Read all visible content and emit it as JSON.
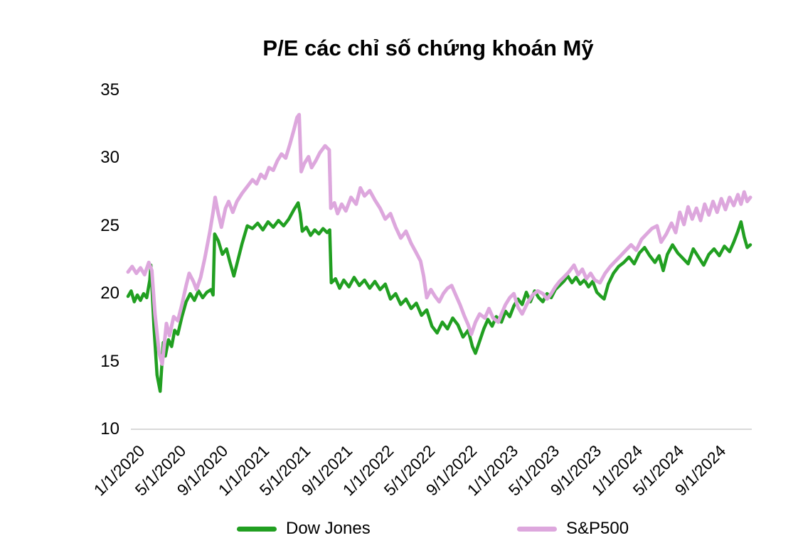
{
  "chart": {
    "title": "P/E các chỉ số chứng khoán Mỹ"
  },
  "chart_data": {
    "type": "line",
    "title": "P/E các chỉ số chứng khoán Mỹ",
    "xlabel": "",
    "ylabel": "",
    "ylim": [
      10,
      35
    ],
    "y_ticks": [
      10,
      15,
      20,
      25,
      30,
      35
    ],
    "x_unit": "months since 1/1/2020",
    "xlim_months": [
      0,
      60
    ],
    "x_tick_months": [
      0,
      4,
      8,
      12,
      16,
      20,
      24,
      28,
      32,
      36,
      40,
      44,
      48,
      52,
      56
    ],
    "x_tick_labels": [
      "1/1/2020",
      "5/1/2020",
      "9/1/2020",
      "1/1/2021",
      "5/1/2021",
      "9/1/2021",
      "1/1/2022",
      "5/1/2022",
      "9/1/2022",
      "1/1/2023",
      "5/1/2023",
      "9/1/2023",
      "1/1/2024",
      "5/1/2024",
      "9/1/2024"
    ],
    "grid": false,
    "legend_position": "bottom",
    "axis_line_color": "#d9d9d9",
    "series": [
      {
        "name": "Dow Jones",
        "color": "#219f21",
        "points": [
          [
            0,
            19.8
          ],
          [
            0.3,
            20.2
          ],
          [
            0.6,
            19.4
          ],
          [
            0.9,
            19.9
          ],
          [
            1.2,
            19.5
          ],
          [
            1.5,
            20.0
          ],
          [
            1.8,
            19.7
          ],
          [
            2.1,
            21.0
          ],
          [
            2.2,
            22.1
          ],
          [
            2.5,
            17.5
          ],
          [
            2.8,
            14.0
          ],
          [
            3.1,
            12.8
          ],
          [
            3.4,
            16.4
          ],
          [
            3.6,
            15.4
          ],
          [
            3.9,
            16.6
          ],
          [
            4.2,
            16.1
          ],
          [
            4.5,
            17.3
          ],
          [
            4.8,
            17.0
          ],
          [
            5.2,
            18.3
          ],
          [
            5.6,
            19.4
          ],
          [
            6.0,
            20.0
          ],
          [
            6.4,
            19.5
          ],
          [
            6.8,
            20.2
          ],
          [
            7.2,
            19.7
          ],
          [
            7.6,
            20.1
          ],
          [
            8.0,
            20.3
          ],
          [
            8.2,
            19.9
          ],
          [
            8.35,
            24.4
          ],
          [
            8.7,
            23.9
          ],
          [
            9.1,
            22.9
          ],
          [
            9.5,
            23.3
          ],
          [
            9.8,
            22.4
          ],
          [
            10.2,
            21.3
          ],
          [
            10.6,
            22.5
          ],
          [
            11.0,
            23.7
          ],
          [
            11.5,
            25.0
          ],
          [
            12.0,
            24.8
          ],
          [
            12.5,
            25.2
          ],
          [
            13.0,
            24.7
          ],
          [
            13.5,
            25.3
          ],
          [
            14.0,
            24.9
          ],
          [
            14.5,
            25.4
          ],
          [
            15.0,
            25.0
          ],
          [
            15.5,
            25.5
          ],
          [
            16.0,
            26.2
          ],
          [
            16.4,
            26.7
          ],
          [
            16.6,
            25.9
          ],
          [
            16.8,
            24.6
          ],
          [
            17.2,
            24.9
          ],
          [
            17.6,
            24.3
          ],
          [
            18.0,
            24.7
          ],
          [
            18.4,
            24.4
          ],
          [
            18.8,
            24.8
          ],
          [
            19.2,
            24.5
          ],
          [
            19.45,
            24.7
          ],
          [
            19.6,
            20.8
          ],
          [
            20.0,
            21.1
          ],
          [
            20.4,
            20.4
          ],
          [
            20.8,
            21.0
          ],
          [
            21.3,
            20.5
          ],
          [
            21.8,
            21.2
          ],
          [
            22.3,
            20.6
          ],
          [
            22.8,
            21.0
          ],
          [
            23.3,
            20.4
          ],
          [
            23.8,
            20.9
          ],
          [
            24.3,
            20.3
          ],
          [
            24.8,
            20.7
          ],
          [
            25.3,
            19.6
          ],
          [
            25.8,
            20.0
          ],
          [
            26.3,
            19.2
          ],
          [
            26.8,
            19.6
          ],
          [
            27.3,
            18.9
          ],
          [
            27.8,
            19.3
          ],
          [
            28.3,
            18.4
          ],
          [
            28.8,
            18.8
          ],
          [
            29.3,
            17.6
          ],
          [
            29.8,
            17.1
          ],
          [
            30.3,
            17.9
          ],
          [
            30.8,
            17.4
          ],
          [
            31.3,
            18.2
          ],
          [
            31.8,
            17.7
          ],
          [
            32.3,
            16.8
          ],
          [
            32.8,
            17.3
          ],
          [
            33.2,
            16.1
          ],
          [
            33.5,
            15.6
          ],
          [
            33.9,
            16.5
          ],
          [
            34.3,
            17.4
          ],
          [
            34.7,
            18.1
          ],
          [
            35.1,
            17.6
          ],
          [
            35.5,
            18.3
          ],
          [
            36.0,
            17.9
          ],
          [
            36.4,
            18.7
          ],
          [
            36.8,
            18.3
          ],
          [
            37.2,
            19.1
          ],
          [
            37.6,
            19.6
          ],
          [
            38.0,
            19.2
          ],
          [
            38.4,
            20.1
          ],
          [
            38.8,
            19.4
          ],
          [
            39.2,
            20.2
          ],
          [
            39.6,
            19.7
          ],
          [
            40.0,
            19.4
          ],
          [
            40.4,
            20.0
          ],
          [
            40.8,
            19.7
          ],
          [
            41.2,
            20.3
          ],
          [
            41.6,
            20.6
          ],
          [
            42.0,
            20.9
          ],
          [
            42.4,
            21.3
          ],
          [
            42.8,
            20.8
          ],
          [
            43.2,
            21.2
          ],
          [
            43.6,
            20.7
          ],
          [
            44.0,
            21.0
          ],
          [
            44.4,
            20.5
          ],
          [
            44.8,
            20.9
          ],
          [
            45.2,
            20.1
          ],
          [
            45.6,
            19.8
          ],
          [
            45.9,
            19.6
          ],
          [
            46.3,
            20.7
          ],
          [
            46.8,
            21.5
          ],
          [
            47.3,
            22.0
          ],
          [
            47.8,
            22.3
          ],
          [
            48.3,
            22.7
          ],
          [
            48.8,
            22.2
          ],
          [
            49.3,
            23.0
          ],
          [
            49.8,
            23.4
          ],
          [
            50.3,
            22.8
          ],
          [
            50.8,
            22.3
          ],
          [
            51.2,
            22.8
          ],
          [
            51.6,
            21.7
          ],
          [
            52.0,
            22.9
          ],
          [
            52.5,
            23.6
          ],
          [
            53.0,
            23.0
          ],
          [
            53.5,
            22.6
          ],
          [
            54.0,
            22.2
          ],
          [
            54.5,
            23.3
          ],
          [
            55.0,
            22.7
          ],
          [
            55.5,
            22.1
          ],
          [
            56.0,
            22.9
          ],
          [
            56.5,
            23.3
          ],
          [
            57.0,
            22.8
          ],
          [
            57.5,
            23.5
          ],
          [
            58.0,
            23.1
          ],
          [
            58.4,
            23.8
          ],
          [
            58.8,
            24.6
          ],
          [
            59.1,
            25.3
          ],
          [
            59.4,
            24.2
          ],
          [
            59.7,
            23.4
          ],
          [
            60.0,
            23.6
          ]
        ]
      },
      {
        "name": "S&P500",
        "color": "#dda7dd",
        "points": [
          [
            0,
            21.6
          ],
          [
            0.4,
            22.0
          ],
          [
            0.8,
            21.5
          ],
          [
            1.2,
            21.9
          ],
          [
            1.6,
            21.4
          ],
          [
            2.0,
            22.3
          ],
          [
            2.3,
            21.7
          ],
          [
            2.6,
            18.5
          ],
          [
            3.0,
            15.6
          ],
          [
            3.3,
            14.8
          ],
          [
            3.7,
            17.8
          ],
          [
            4.0,
            16.9
          ],
          [
            4.4,
            18.3
          ],
          [
            4.8,
            18.0
          ],
          [
            5.2,
            19.2
          ],
          [
            5.6,
            20.6
          ],
          [
            5.9,
            21.5
          ],
          [
            6.3,
            20.9
          ],
          [
            6.6,
            20.3
          ],
          [
            7.0,
            21.2
          ],
          [
            7.4,
            22.6
          ],
          [
            7.9,
            24.6
          ],
          [
            8.2,
            26.0
          ],
          [
            8.4,
            27.1
          ],
          [
            8.7,
            25.9
          ],
          [
            9.0,
            24.9
          ],
          [
            9.4,
            26.3
          ],
          [
            9.7,
            26.8
          ],
          [
            10.1,
            26.0
          ],
          [
            10.5,
            26.8
          ],
          [
            11.0,
            27.4
          ],
          [
            11.5,
            27.9
          ],
          [
            12.0,
            28.4
          ],
          [
            12.4,
            28.1
          ],
          [
            12.8,
            28.8
          ],
          [
            13.2,
            28.5
          ],
          [
            13.6,
            29.3
          ],
          [
            14.0,
            29.1
          ],
          [
            14.4,
            29.8
          ],
          [
            14.8,
            30.3
          ],
          [
            15.2,
            30.0
          ],
          [
            15.6,
            31.0
          ],
          [
            16.0,
            32.1
          ],
          [
            16.3,
            33.0
          ],
          [
            16.5,
            33.2
          ],
          [
            16.7,
            29.0
          ],
          [
            17.0,
            29.6
          ],
          [
            17.4,
            30.1
          ],
          [
            17.7,
            29.3
          ],
          [
            18.1,
            29.8
          ],
          [
            18.5,
            30.4
          ],
          [
            19.0,
            30.9
          ],
          [
            19.4,
            30.6
          ],
          [
            19.55,
            26.3
          ],
          [
            19.9,
            26.7
          ],
          [
            20.2,
            25.9
          ],
          [
            20.6,
            26.6
          ],
          [
            21.0,
            26.1
          ],
          [
            21.5,
            27.1
          ],
          [
            22.0,
            26.6
          ],
          [
            22.4,
            27.8
          ],
          [
            22.8,
            27.2
          ],
          [
            23.3,
            27.6
          ],
          [
            23.8,
            26.9
          ],
          [
            24.3,
            26.3
          ],
          [
            24.8,
            25.5
          ],
          [
            25.3,
            25.9
          ],
          [
            25.8,
            24.9
          ],
          [
            26.3,
            24.1
          ],
          [
            26.8,
            24.6
          ],
          [
            27.3,
            23.7
          ],
          [
            27.8,
            23.0
          ],
          [
            28.2,
            22.4
          ],
          [
            28.5,
            21.3
          ],
          [
            28.8,
            19.7
          ],
          [
            29.2,
            20.3
          ],
          [
            29.6,
            19.8
          ],
          [
            30.0,
            19.4
          ],
          [
            30.4,
            20.0
          ],
          [
            30.8,
            20.4
          ],
          [
            31.2,
            20.6
          ],
          [
            31.6,
            19.9
          ],
          [
            32.0,
            19.2
          ],
          [
            32.4,
            18.4
          ],
          [
            32.8,
            17.7
          ],
          [
            33.1,
            17.0
          ],
          [
            33.5,
            17.9
          ],
          [
            33.9,
            18.5
          ],
          [
            34.4,
            18.2
          ],
          [
            34.8,
            18.9
          ],
          [
            35.2,
            18.2
          ],
          [
            35.7,
            17.9
          ],
          [
            36.0,
            18.5
          ],
          [
            36.4,
            19.2
          ],
          [
            36.8,
            19.7
          ],
          [
            37.2,
            20.0
          ],
          [
            37.6,
            19.0
          ],
          [
            38.0,
            18.5
          ],
          [
            38.5,
            19.3
          ],
          [
            39.0,
            19.9
          ],
          [
            39.5,
            20.2
          ],
          [
            40.0,
            20.0
          ],
          [
            40.4,
            19.6
          ],
          [
            40.8,
            20.0
          ],
          [
            41.2,
            20.5
          ],
          [
            41.6,
            20.9
          ],
          [
            42.0,
            21.2
          ],
          [
            42.5,
            21.6
          ],
          [
            43.0,
            22.1
          ],
          [
            43.4,
            21.4
          ],
          [
            43.8,
            21.8
          ],
          [
            44.2,
            21.1
          ],
          [
            44.6,
            21.5
          ],
          [
            45.0,
            21.0
          ],
          [
            45.5,
            20.8
          ],
          [
            46.0,
            21.5
          ],
          [
            46.5,
            22.0
          ],
          [
            47.0,
            22.4
          ],
          [
            47.5,
            22.8
          ],
          [
            48.0,
            23.2
          ],
          [
            48.5,
            23.6
          ],
          [
            49.0,
            23.2
          ],
          [
            49.5,
            24.0
          ],
          [
            50.0,
            24.4
          ],
          [
            50.5,
            24.8
          ],
          [
            51.0,
            25.0
          ],
          [
            51.4,
            23.8
          ],
          [
            51.9,
            24.4
          ],
          [
            52.4,
            25.2
          ],
          [
            52.8,
            24.5
          ],
          [
            53.2,
            26.0
          ],
          [
            53.6,
            25.1
          ],
          [
            54.0,
            26.4
          ],
          [
            54.4,
            25.5
          ],
          [
            54.8,
            26.3
          ],
          [
            55.2,
            25.4
          ],
          [
            55.6,
            26.6
          ],
          [
            56.0,
            25.8
          ],
          [
            56.4,
            26.8
          ],
          [
            56.8,
            26.0
          ],
          [
            57.2,
            27.0
          ],
          [
            57.6,
            26.2
          ],
          [
            58.0,
            27.1
          ],
          [
            58.4,
            26.5
          ],
          [
            58.8,
            27.3
          ],
          [
            59.1,
            26.6
          ],
          [
            59.4,
            27.5
          ],
          [
            59.7,
            26.8
          ],
          [
            60.0,
            27.1
          ]
        ]
      }
    ]
  },
  "legend": {
    "items": [
      {
        "label": "Dow Jones",
        "color": "#219f21"
      },
      {
        "label": "S&P500",
        "color": "#dda7dd"
      }
    ]
  }
}
